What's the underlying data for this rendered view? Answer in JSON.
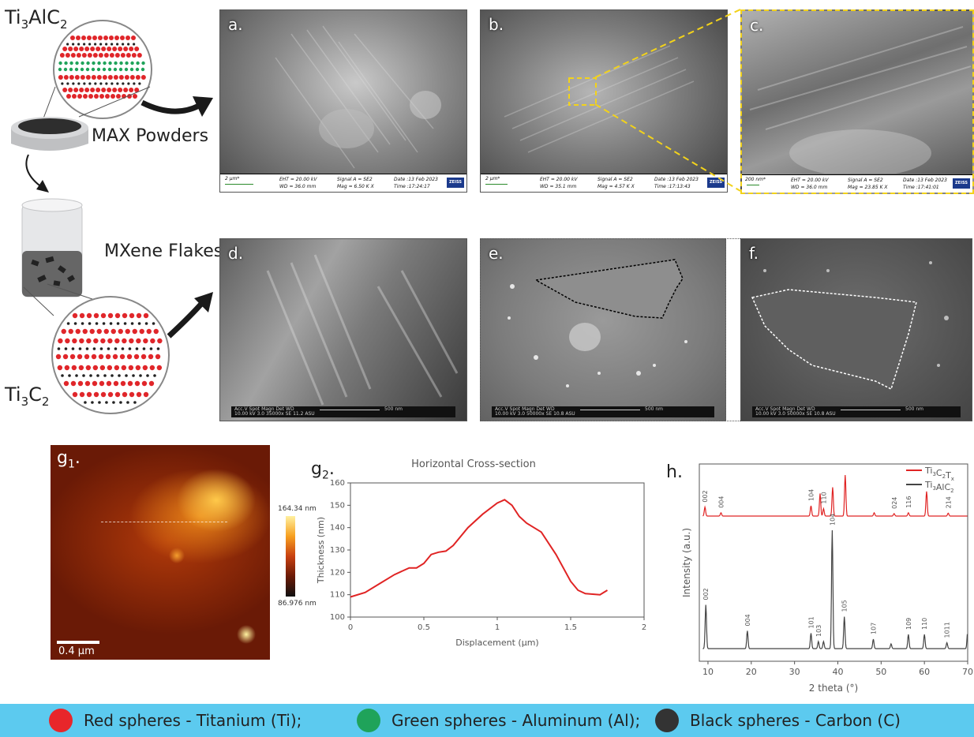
{
  "schematic": {
    "max_formula": {
      "main": "Ti",
      "sub1": "3",
      "mid": "AlC",
      "sub2": "2"
    },
    "max_powders_label": "MAX Powders",
    "mxene_flakes_label": "MXene Flakes",
    "mxene_formula": {
      "main": "Ti",
      "sub1": "3",
      "mid": "C",
      "sub2": "2"
    }
  },
  "panels": {
    "a": {
      "letter": "a.",
      "scale": "2 µm*",
      "eht": "EHT = 20.00 kV",
      "wd": "WD = 36.0 mm",
      "signal": "Signal A = SE2",
      "mag": "Mag =   6.50 K X",
      "date": "Date :13 Feb 2023",
      "time": "Time :17:24:17",
      "brand": "ZEISS"
    },
    "b": {
      "letter": "b.",
      "scale": "2 µm*",
      "eht": "EHT = 20.00 kV",
      "wd": "WD = 35.1 mm",
      "signal": "Signal A = SE2",
      "mag": "Mag =   4.57 K X",
      "date": "Date :13 Feb 2023",
      "time": "Time :17:13:43",
      "brand": "ZEISS"
    },
    "c": {
      "letter": "c.",
      "scale": "200 nm*",
      "eht": "EHT = 20.00 kV",
      "wd": "WD = 36.0 mm",
      "signal": "Signal A = SE2",
      "mag": "Mag =   23.85 K X",
      "date": "Date :13 Feb 2023",
      "time": "Time :17:41:01",
      "brand": "ZEISS"
    },
    "d": {
      "letter": "d.",
      "info": "Acc.V   Spot  Magn    Det  WD",
      "info2": "10.00 kV  3.0   35000x  SE  11.2  ASU",
      "scale": "500 nm"
    },
    "e": {
      "letter": "e.",
      "info": "Acc.V   Spot  Magn    Det  WD",
      "info2": "10.00 kV  3.0   50000x  SE  10.8  ASU",
      "scale": "500 nm"
    },
    "f": {
      "letter": "f.",
      "info": "Acc.V   Spot  Magn    Det  WD",
      "info2": "10.00 kV  3.0   50000x  SE  10.8  ASU",
      "scale": "500 nm"
    }
  },
  "afm": {
    "letter_main": "g",
    "letter_sub": "1",
    "letter_dot": ".",
    "colorbar_max": "164.34 nm",
    "colorbar_min": "86.976 nm",
    "scalebar": "0.4 µm"
  },
  "chart_data": [
    {
      "type": "line",
      "panel_letter_main": "g",
      "panel_letter_sub": "2",
      "panel_letter_dot": ".",
      "title": "Horizontal Cross-section",
      "xlabel": "Displacement (µm)",
      "ylabel": "Thickness (nm)",
      "xlim": [
        0,
        2
      ],
      "ylim": [
        100,
        160
      ],
      "xticks": [
        "0",
        "0.5",
        "1",
        "1.5",
        "2"
      ],
      "yticks": [
        "100",
        "110",
        "120",
        "130",
        "140",
        "150",
        "160"
      ],
      "color": "#e02424",
      "x": [
        0,
        0.1,
        0.2,
        0.3,
        0.4,
        0.45,
        0.5,
        0.55,
        0.6,
        0.65,
        0.7,
        0.8,
        0.9,
        1.0,
        1.05,
        1.1,
        1.15,
        1.2,
        1.3,
        1.4,
        1.5,
        1.55,
        1.6,
        1.7,
        1.75
      ],
      "y": [
        109,
        111,
        115,
        119,
        122,
        122,
        124,
        128,
        129,
        129.5,
        132,
        140,
        146,
        151,
        152.5,
        150,
        145,
        142,
        138,
        128,
        116,
        112,
        110.5,
        110,
        112
      ]
    },
    {
      "type": "line",
      "panel_letter": "h.",
      "xlabel": "2 theta (°)",
      "ylabel": "Intensity (a.u.)",
      "xlim": [
        8,
        70
      ],
      "xticks": [
        "10",
        "20",
        "30",
        "40",
        "50",
        "60",
        "70"
      ],
      "series": [
        {
          "name_main": "Ti",
          "name_sub1": "3",
          "name_mid": "C",
          "name_sub2": "2",
          "name_mid2": "T",
          "name_sub3": "x",
          "color": "#e02424",
          "peaks": [
            {
              "x": 9.3,
              "h": 0.22,
              "label": "002"
            },
            {
              "x": 13.0,
              "h": 0.08,
              "label": "004"
            },
            {
              "x": 33.8,
              "h": 0.25,
              "label": "104"
            },
            {
              "x": 35.9,
              "h": 0.55,
              "label": ""
            },
            {
              "x": 36.7,
              "h": 0.18,
              "label": "110"
            },
            {
              "x": 38.8,
              "h": 0.7,
              "label": ""
            },
            {
              "x": 41.7,
              "h": 1.0,
              "label": ""
            },
            {
              "x": 48.4,
              "h": 0.08,
              "label": ""
            },
            {
              "x": 53.0,
              "h": 0.06,
              "label": "024"
            },
            {
              "x": 56.3,
              "h": 0.08,
              "label": "116"
            },
            {
              "x": 60.5,
              "h": 0.6,
              "label": ""
            },
            {
              "x": 65.5,
              "h": 0.07,
              "label": "214"
            }
          ]
        },
        {
          "name_main": "Ti",
          "name_sub1": "3",
          "name_mid": "AlC",
          "name_sub2": "2",
          "color": "#444444",
          "peaks": [
            {
              "x": 9.5,
              "h": 0.37,
              "label": "002"
            },
            {
              "x": 19.1,
              "h": 0.15,
              "label": "004"
            },
            {
              "x": 33.8,
              "h": 0.13,
              "label": "101"
            },
            {
              "x": 35.5,
              "h": 0.06,
              "label": "103"
            },
            {
              "x": 36.7,
              "h": 0.06,
              "label": ""
            },
            {
              "x": 38.7,
              "h": 1.0,
              "label": "104"
            },
            {
              "x": 41.5,
              "h": 0.27,
              "label": "105"
            },
            {
              "x": 48.2,
              "h": 0.08,
              "label": "107"
            },
            {
              "x": 52.3,
              "h": 0.04,
              "label": ""
            },
            {
              "x": 56.3,
              "h": 0.12,
              "label": "109"
            },
            {
              "x": 60.0,
              "h": 0.12,
              "label": "110"
            },
            {
              "x": 65.2,
              "h": 0.05,
              "label": "1011"
            },
            {
              "x": 70.0,
              "h": 0.15,
              "label": ""
            }
          ]
        }
      ]
    }
  ],
  "legend": [
    {
      "text": "Red spheres - Titanium (Ti);",
      "color": "#e8262a"
    },
    {
      "text": "Green spheres - Aluminum (Al);",
      "color": "#1fa35a"
    },
    {
      "text": "Black spheres - Carbon (C)",
      "color": "#333333"
    }
  ]
}
